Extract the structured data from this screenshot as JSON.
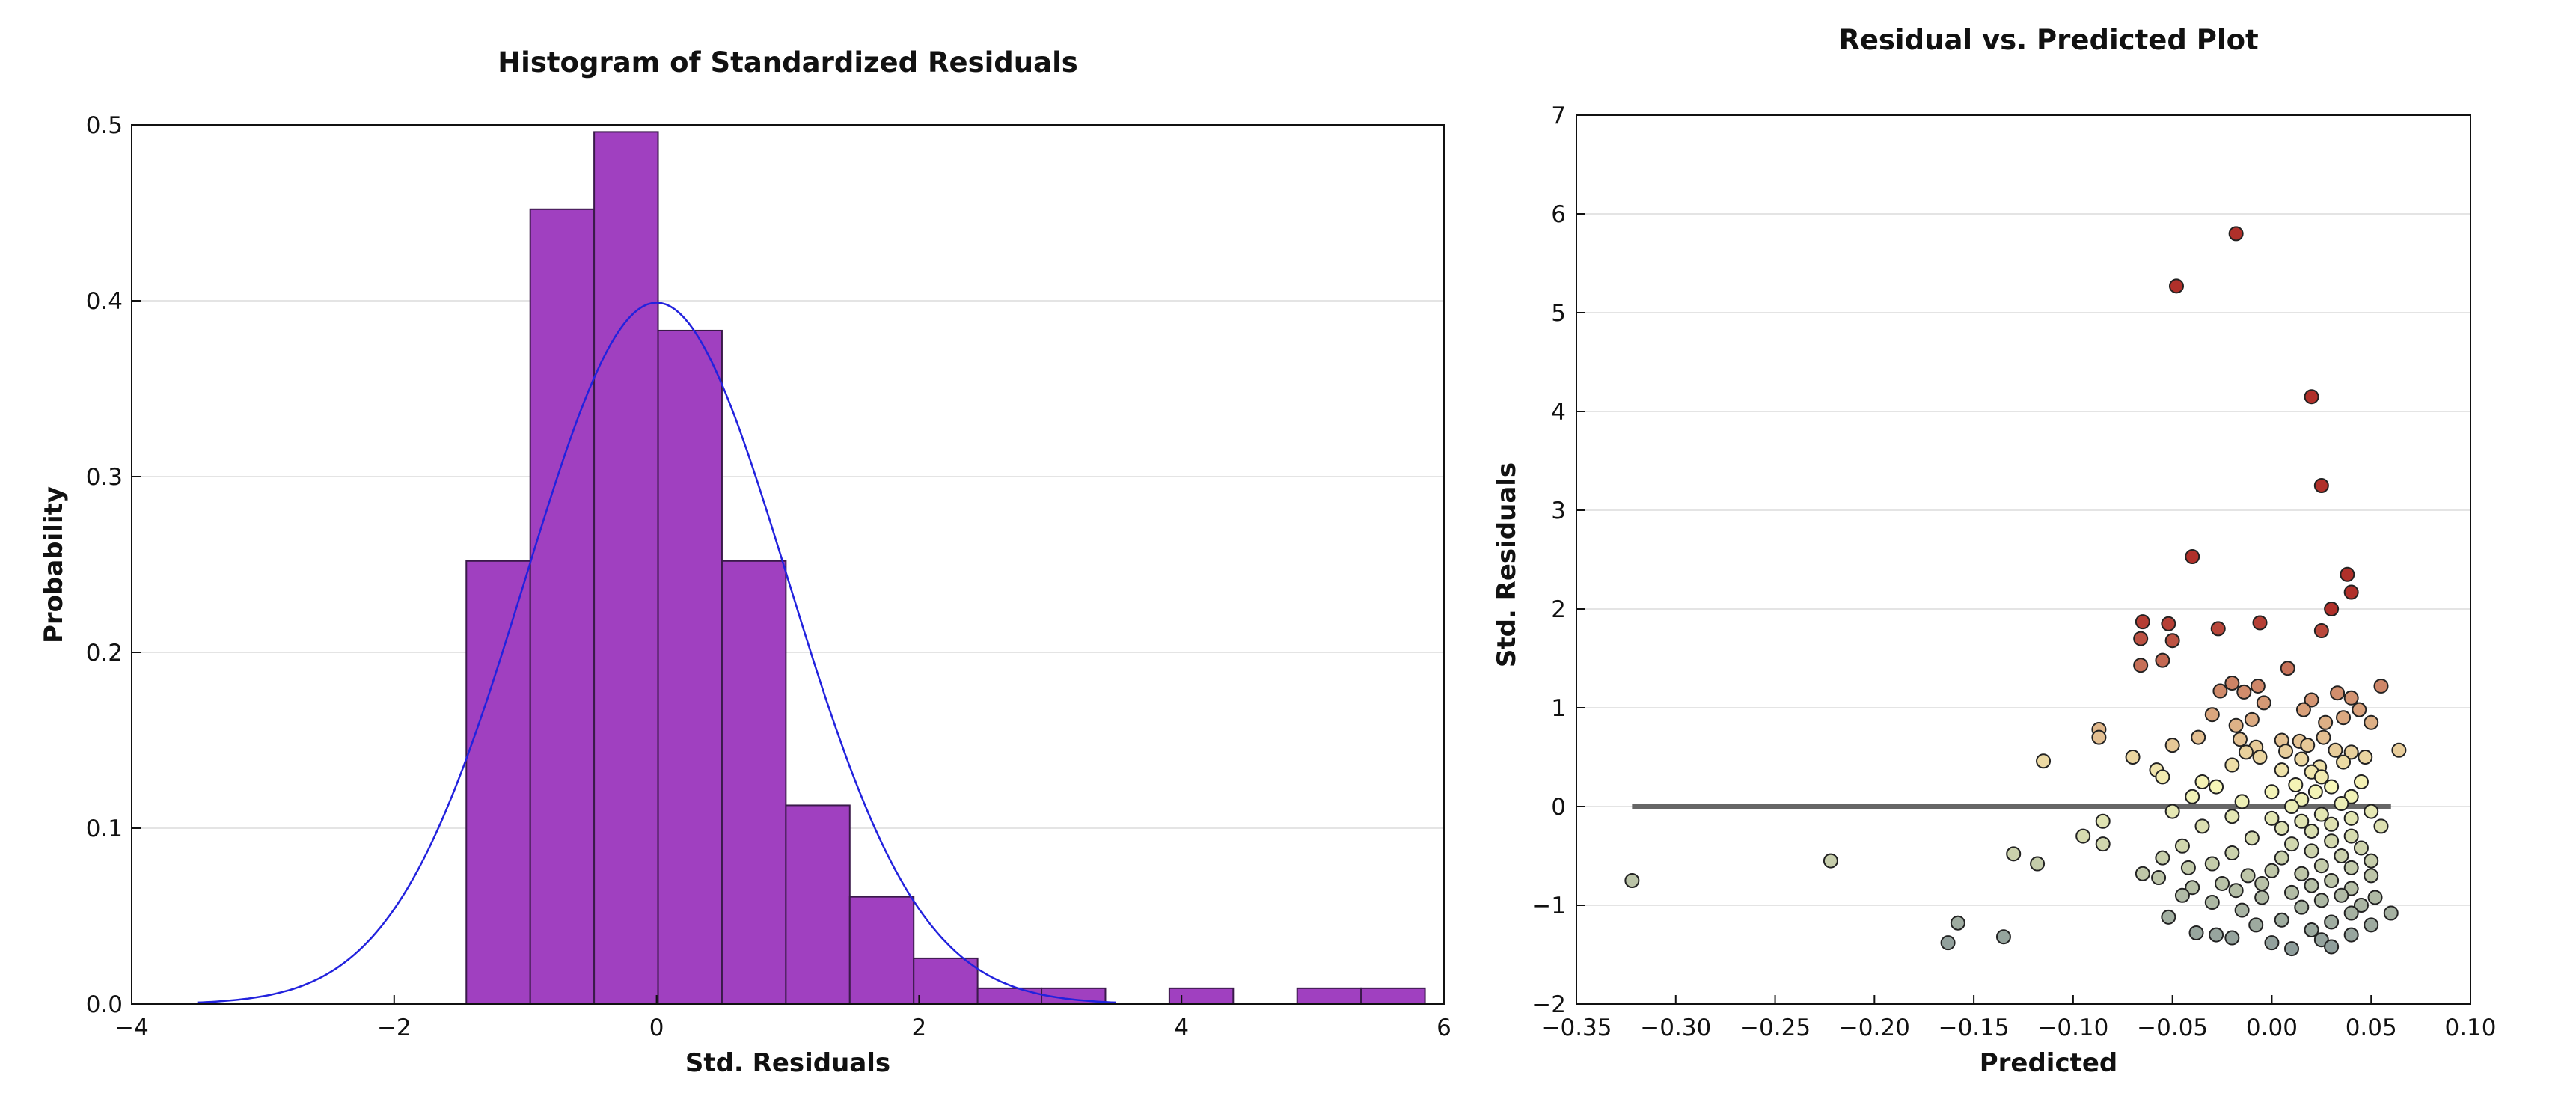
{
  "chart_data": [
    {
      "type": "bar",
      "title": "Histogram of Standardized Residuals",
      "xlabel": "Std. Residuals",
      "ylabel": "Probability",
      "xlim": [
        -4,
        6
      ],
      "ylim": [
        0,
        0.5
      ],
      "xticks": [
        "−4",
        "−2",
        "0",
        "2",
        "4",
        "6"
      ],
      "yticks": [
        "0.0",
        "0.1",
        "0.2",
        "0.3",
        "0.4",
        "0.5"
      ],
      "bin_width": 0.487,
      "bins": [
        {
          "x0": -1.45,
          "value": 0.252
        },
        {
          "x0": -0.963,
          "value": 0.452
        },
        {
          "x0": -0.476,
          "value": 0.496
        },
        {
          "x0": 0.011,
          "value": 0.383
        },
        {
          "x0": 0.498,
          "value": 0.252
        },
        {
          "x0": 0.985,
          "value": 0.113
        },
        {
          "x0": 1.472,
          "value": 0.061
        },
        {
          "x0": 1.959,
          "value": 0.026
        },
        {
          "x0": 2.446,
          "value": 0.009
        },
        {
          "x0": 2.933,
          "value": 0.009
        },
        {
          "x0": 3.907,
          "value": 0.009
        },
        {
          "x0": 4.881,
          "value": 0.009
        },
        {
          "x0": 5.368,
          "value": 0.009
        }
      ],
      "curve": {
        "type": "normal-pdf",
        "mean": 0,
        "sd": 1,
        "x_range": [
          -3.5,
          3.5
        ]
      },
      "grid": "y",
      "colors": {
        "bar_fill": "#a040c0",
        "bar_edge": "#3a1a4a",
        "curve": "#2222dd"
      }
    },
    {
      "type": "scatter",
      "title": "Residual vs. Predicted Plot",
      "xlabel": "Predicted",
      "ylabel": "Std. Residuals",
      "xlim": [
        -0.35,
        0.1
      ],
      "ylim": [
        -2,
        7
      ],
      "xticks": [
        "−0.35",
        "−0.30",
        "−0.25",
        "−0.20",
        "−0.15",
        "−0.10",
        "−0.05",
        "0.00",
        "0.05",
        "0.10"
      ],
      "yticks": [
        "−2",
        "−1",
        "0",
        "1",
        "2",
        "3",
        "4",
        "5",
        "6",
        "7"
      ],
      "reference_line": {
        "y": 0,
        "x_range": [
          -0.322,
          0.06
        ],
        "color": "#666666"
      },
      "grid": "y",
      "color_scale": {
        "low": "#8a9a9a",
        "mid": "#f6f6b8",
        "high": "#b0302a"
      },
      "points": [
        [
          -0.018,
          5.8
        ],
        [
          -0.048,
          5.27
        ],
        [
          0.02,
          4.15
        ],
        [
          0.025,
          3.25
        ],
        [
          -0.04,
          2.53
        ],
        [
          0.038,
          2.35
        ],
        [
          0.04,
          2.17
        ],
        [
          0.03,
          2.0
        ],
        [
          0.025,
          1.78
        ],
        [
          -0.065,
          1.87
        ],
        [
          -0.052,
          1.85
        ],
        [
          -0.027,
          1.8
        ],
        [
          -0.006,
          1.86
        ],
        [
          -0.066,
          1.7
        ],
        [
          -0.05,
          1.68
        ],
        [
          -0.066,
          1.43
        ],
        [
          -0.055,
          1.48
        ],
        [
          0.008,
          1.4
        ],
        [
          0.055,
          1.22
        ],
        [
          -0.02,
          1.25
        ],
        [
          -0.007,
          1.22
        ],
        [
          -0.026,
          1.17
        ],
        [
          -0.014,
          1.16
        ],
        [
          0.033,
          1.15
        ],
        [
          0.04,
          1.1
        ],
        [
          0.02,
          1.08
        ],
        [
          -0.004,
          1.05
        ],
        [
          0.016,
          0.98
        ],
        [
          0.044,
          0.98
        ],
        [
          -0.03,
          0.93
        ],
        [
          0.036,
          0.9
        ],
        [
          -0.01,
          0.88
        ],
        [
          0.027,
          0.85
        ],
        [
          0.05,
          0.85
        ],
        [
          -0.018,
          0.82
        ],
        [
          -0.087,
          0.78
        ],
        [
          -0.087,
          0.7
        ],
        [
          -0.037,
          0.7
        ],
        [
          -0.016,
          0.68
        ],
        [
          0.005,
          0.67
        ],
        [
          0.014,
          0.66
        ],
        [
          0.026,
          0.7
        ],
        [
          0.018,
          0.62
        ],
        [
          -0.05,
          0.62
        ],
        [
          -0.008,
          0.6
        ],
        [
          -0.013,
          0.55
        ],
        [
          0.007,
          0.56
        ],
        [
          0.032,
          0.57
        ],
        [
          0.04,
          0.55
        ],
        [
          0.064,
          0.57
        ],
        [
          0.047,
          0.5
        ],
        [
          -0.07,
          0.5
        ],
        [
          -0.006,
          0.5
        ],
        [
          0.015,
          0.48
        ],
        [
          -0.115,
          0.46
        ],
        [
          0.036,
          0.45
        ],
        [
          -0.02,
          0.42
        ],
        [
          0.024,
          0.4
        ],
        [
          -0.058,
          0.37
        ],
        [
          0.005,
          0.37
        ],
        [
          0.02,
          0.35
        ],
        [
          -0.055,
          0.3
        ],
        [
          0.025,
          0.3
        ],
        [
          -0.035,
          0.25
        ],
        [
          0.045,
          0.25
        ],
        [
          0.012,
          0.22
        ],
        [
          -0.028,
          0.2
        ],
        [
          0.03,
          0.2
        ],
        [
          0.0,
          0.15
        ],
        [
          0.022,
          0.15
        ],
        [
          -0.04,
          0.1
        ],
        [
          0.04,
          0.1
        ],
        [
          0.015,
          0.07
        ],
        [
          -0.015,
          0.05
        ],
        [
          0.035,
          0.03
        ],
        [
          0.01,
          0.0
        ],
        [
          -0.05,
          -0.05
        ],
        [
          0.05,
          -0.05
        ],
        [
          0.025,
          -0.08
        ],
        [
          -0.02,
          -0.1
        ],
        [
          0.0,
          -0.12
        ],
        [
          0.04,
          -0.12
        ],
        [
          -0.085,
          -0.15
        ],
        [
          0.015,
          -0.15
        ],
        [
          0.03,
          -0.18
        ],
        [
          -0.035,
          -0.2
        ],
        [
          0.055,
          -0.2
        ],
        [
          0.005,
          -0.22
        ],
        [
          0.02,
          -0.25
        ],
        [
          -0.095,
          -0.3
        ],
        [
          0.04,
          -0.3
        ],
        [
          -0.01,
          -0.32
        ],
        [
          0.03,
          -0.35
        ],
        [
          -0.085,
          -0.38
        ],
        [
          0.01,
          -0.38
        ],
        [
          -0.045,
          -0.4
        ],
        [
          0.045,
          -0.42
        ],
        [
          0.02,
          -0.45
        ],
        [
          -0.02,
          -0.47
        ],
        [
          -0.13,
          -0.48
        ],
        [
          0.035,
          -0.5
        ],
        [
          -0.055,
          -0.52
        ],
        [
          0.005,
          -0.52
        ],
        [
          0.05,
          -0.55
        ],
        [
          -0.118,
          -0.58
        ],
        [
          -0.03,
          -0.58
        ],
        [
          0.025,
          -0.6
        ],
        [
          -0.042,
          -0.62
        ],
        [
          0.04,
          -0.62
        ],
        [
          0.0,
          -0.65
        ],
        [
          -0.065,
          -0.68
        ],
        [
          0.015,
          -0.68
        ],
        [
          -0.012,
          -0.7
        ],
        [
          0.05,
          -0.7
        ],
        [
          -0.057,
          -0.72
        ],
        [
          0.03,
          -0.75
        ],
        [
          -0.025,
          -0.78
        ],
        [
          -0.005,
          -0.78
        ],
        [
          0.02,
          -0.8
        ],
        [
          -0.04,
          -0.82
        ],
        [
          0.04,
          -0.83
        ],
        [
          -0.018,
          -0.85
        ],
        [
          0.01,
          -0.87
        ],
        [
          -0.045,
          -0.9
        ],
        [
          0.035,
          -0.9
        ],
        [
          0.052,
          -0.92
        ],
        [
          -0.005,
          -0.92
        ],
        [
          0.025,
          -0.95
        ],
        [
          -0.03,
          -0.97
        ],
        [
          0.045,
          -1.0
        ],
        [
          0.015,
          -1.02
        ],
        [
          -0.015,
          -1.05
        ],
        [
          0.04,
          -1.08
        ],
        [
          0.06,
          -1.08
        ],
        [
          -0.052,
          -1.12
        ],
        [
          0.005,
          -1.15
        ],
        [
          0.03,
          -1.17
        ],
        [
          -0.008,
          -1.2
        ],
        [
          0.05,
          -1.2
        ],
        [
          0.02,
          -1.25
        ],
        [
          -0.038,
          -1.28
        ],
        [
          -0.028,
          -1.3
        ],
        [
          0.04,
          -1.3
        ],
        [
          -0.02,
          -1.33
        ],
        [
          0.025,
          -1.35
        ],
        [
          0.0,
          -1.38
        ],
        [
          0.03,
          -1.42
        ],
        [
          0.01,
          -1.44
        ],
        [
          -0.158,
          -1.18
        ],
        [
          -0.135,
          -1.32
        ],
        [
          -0.163,
          -1.38
        ],
        [
          -0.222,
          -0.55
        ],
        [
          -0.322,
          -0.75
        ]
      ]
    }
  ]
}
